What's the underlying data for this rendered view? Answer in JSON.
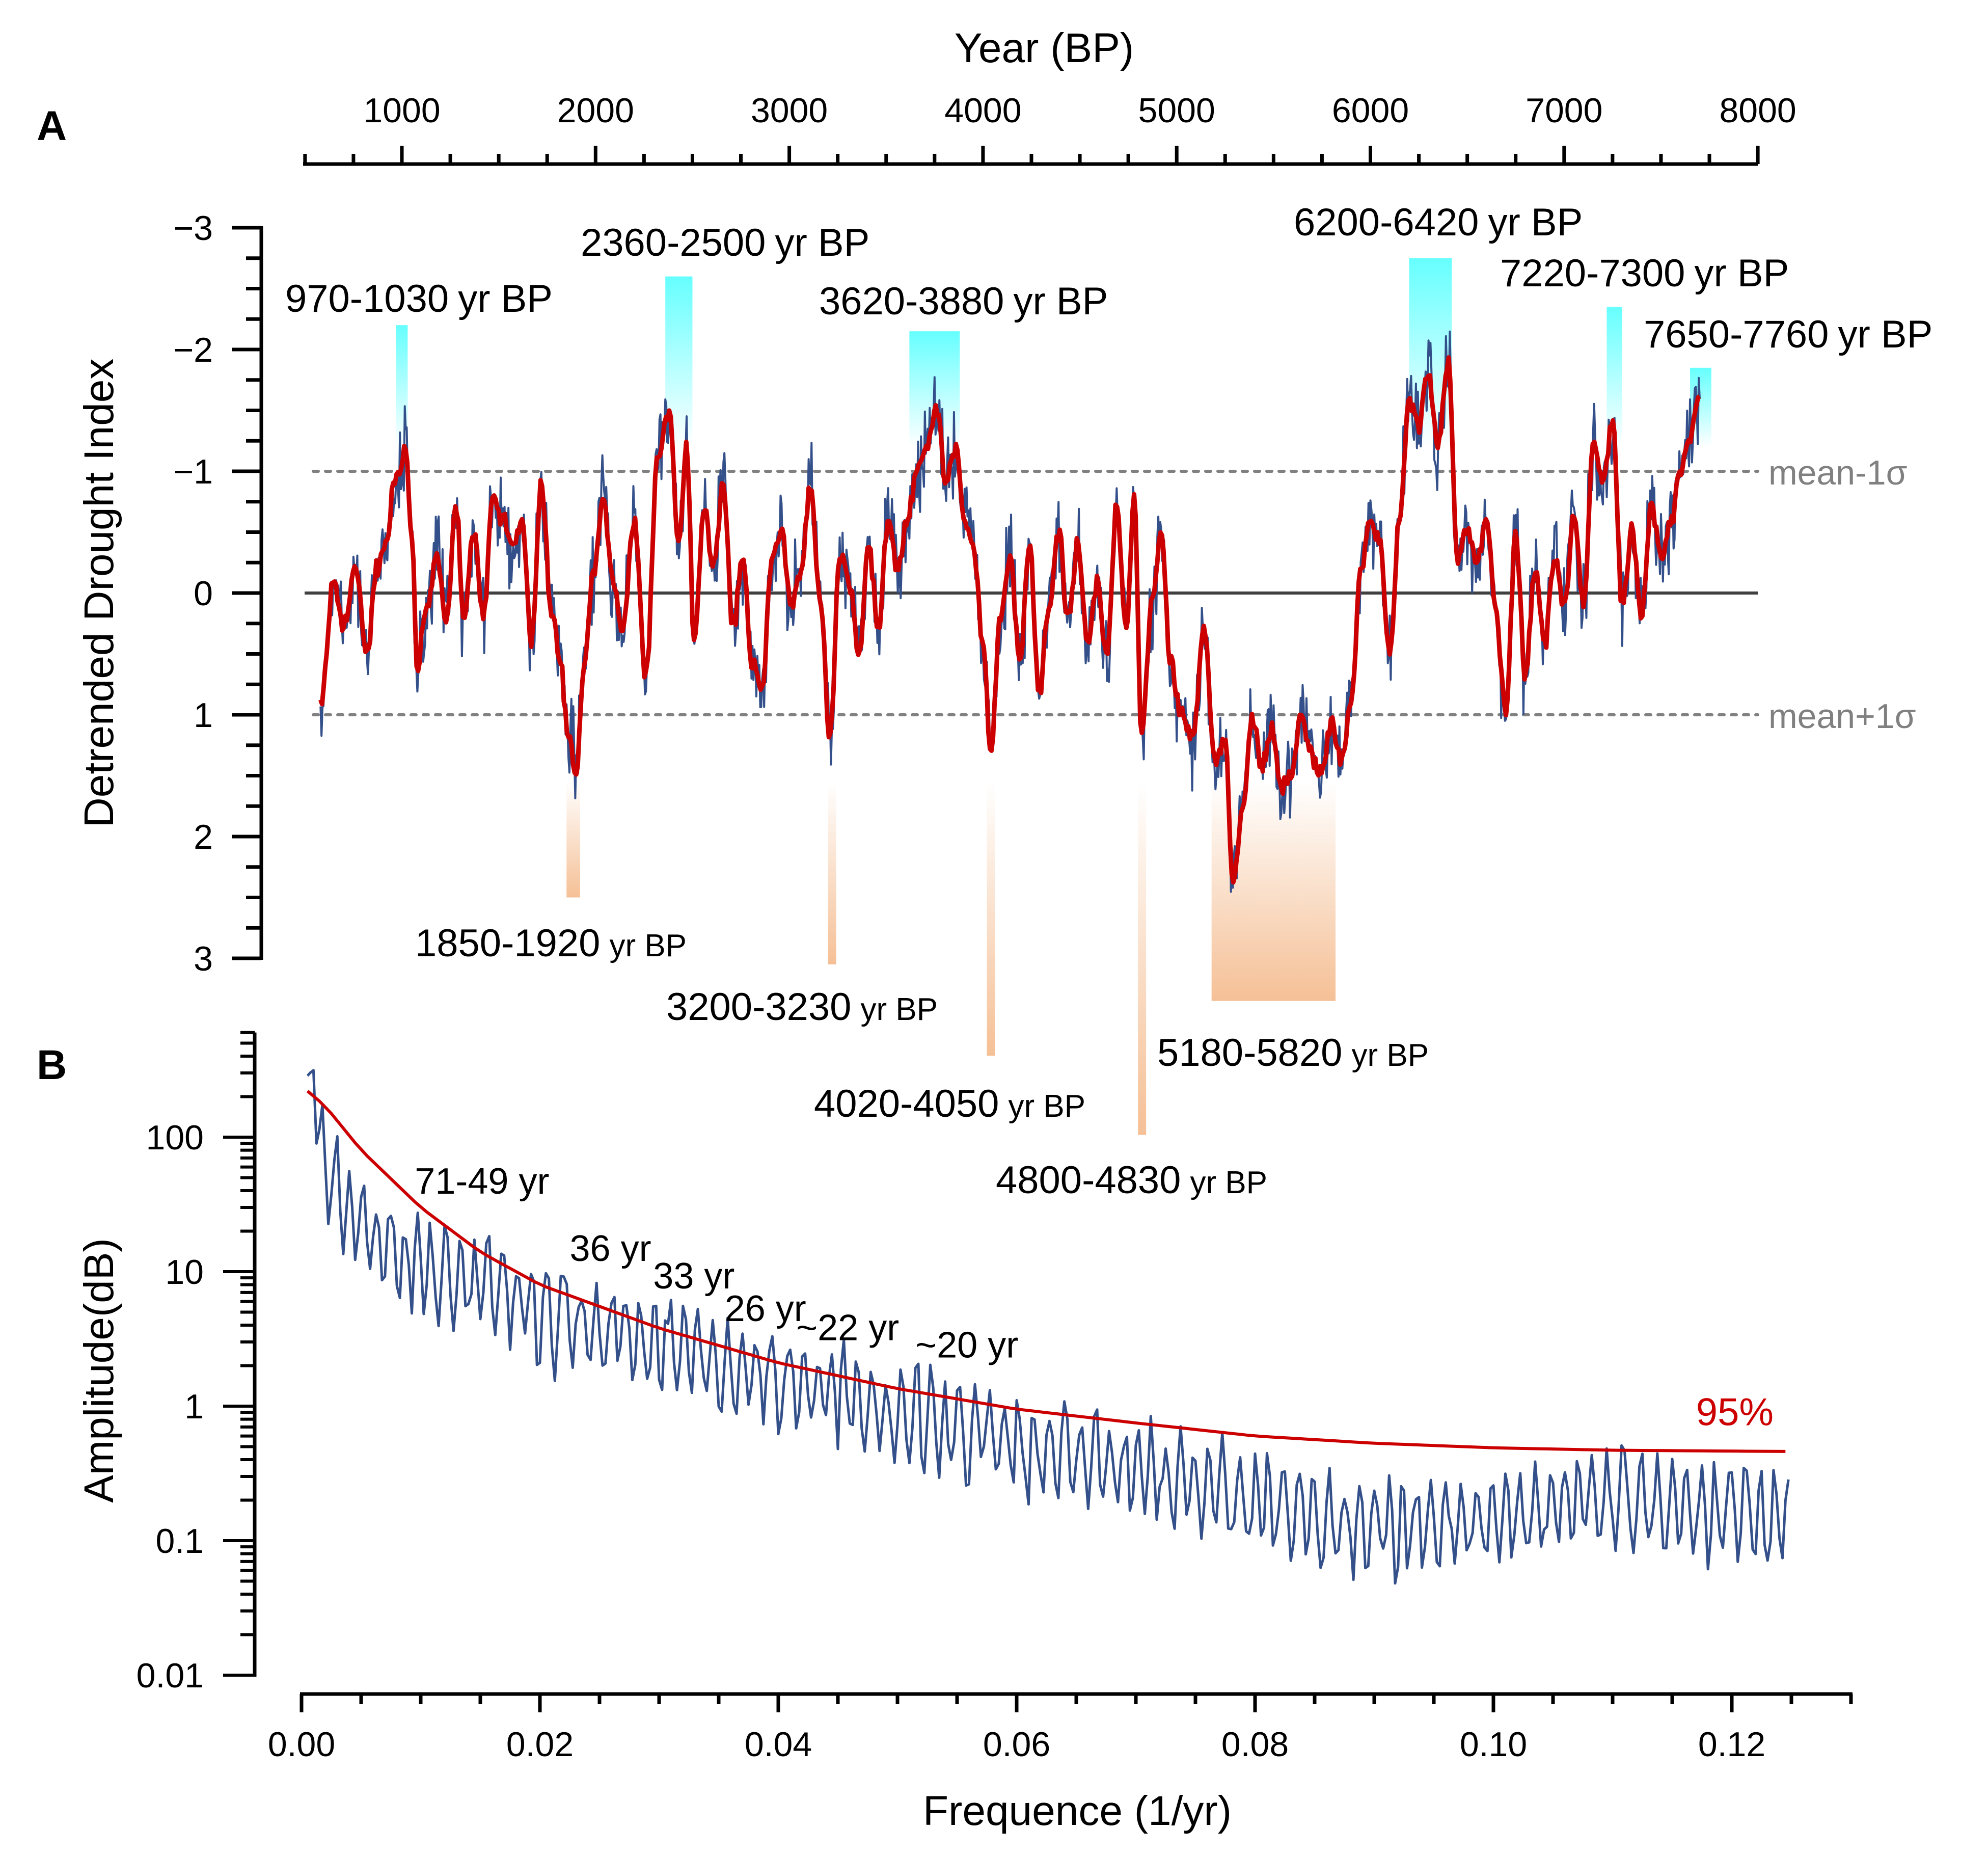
{
  "figure": {
    "panel_a_label": "A",
    "panel_b_label": "B"
  },
  "chart_data": [
    {
      "panel": "A",
      "type": "line",
      "title": "",
      "xlabel": "Year (BP)",
      "ylabel": "Detrended Drought Index",
      "x_axis_position": "top",
      "xlim": [
        490,
        8000
      ],
      "ylim": [
        -3,
        3
      ],
      "y_inverted": true,
      "xticks": [
        1000,
        2000,
        3000,
        4000,
        5000,
        6000,
        7000,
        8000
      ],
      "xtick_labels": [
        "1000",
        "2000",
        "3000",
        "4000",
        "5000",
        "6000",
        "7000",
        "8000"
      ],
      "yticks": [
        -3,
        -2,
        -1,
        0,
        1,
        2,
        3
      ],
      "ytick_labels": [
        "−3",
        "−2",
        "−1",
        "0",
        "1",
        "2",
        "3"
      ],
      "grid": false,
      "data_range_years": [
        580,
        7780
      ],
      "series": [
        {
          "name": "Detrended drought index (raw)",
          "color": "#34508a",
          "style": "thin"
        },
        {
          "name": "Smoothed drought index",
          "color": "#cc0000",
          "style": "thick"
        }
      ],
      "smoothed_anchor_points": {
        "year": [
          580,
          650,
          700,
          760,
          820,
          870,
          920,
          960,
          990,
          1020,
          1050,
          1080,
          1130,
          1180,
          1230,
          1280,
          1320,
          1370,
          1420,
          1470,
          1520,
          1570,
          1620,
          1670,
          1720,
          1770,
          1820,
          1860,
          1900,
          1940,
          1990,
          2040,
          2090,
          2140,
          2200,
          2260,
          2320,
          2380,
          2430,
          2470,
          2510,
          2560,
          2610,
          2660,
          2710,
          2760,
          2810,
          2860,
          2910,
          2960,
          3010,
          3060,
          3110,
          3160,
          3210,
          3260,
          3310,
          3360,
          3410,
          3460,
          3510,
          3560,
          3610,
          3660,
          3710,
          3760,
          3810,
          3860,
          3900,
          3950,
          4000,
          4040,
          4090,
          4140,
          4190,
          4240,
          4290,
          4340,
          4390,
          4440,
          4490,
          4540,
          4590,
          4640,
          4690,
          4740,
          4780,
          4820,
          4870,
          4920,
          4970,
          5020,
          5080,
          5140,
          5200,
          5250,
          5290,
          5340,
          5390,
          5440,
          5490,
          5540,
          5590,
          5640,
          5690,
          5740,
          5800,
          5850,
          5900,
          5950,
          6000,
          6050,
          6100,
          6150,
          6200,
          6250,
          6300,
          6350,
          6400,
          6450,
          6500,
          6550,
          6600,
          6650,
          6700,
          6750,
          6800,
          6850,
          6900,
          6950,
          7000,
          7050,
          7100,
          7150,
          7200,
          7250,
          7300,
          7350,
          7400,
          7450,
          7500,
          7550,
          7600,
          7650,
          7700,
          7740,
          7780
        ],
        "value": [
          0.9,
          -0.1,
          0.3,
          -0.2,
          0.5,
          -0.2,
          -0.4,
          -0.9,
          -1.0,
          -1.2,
          -0.5,
          0.6,
          0.1,
          -0.3,
          0.2,
          -0.7,
          0.2,
          -0.5,
          0.2,
          -0.8,
          -0.6,
          -0.4,
          -0.6,
          0.4,
          -0.9,
          0.1,
          0.6,
          1.2,
          1.5,
          0.6,
          -0.2,
          -0.8,
          -0.1,
          0.3,
          -0.6,
          0.7,
          -1.1,
          -1.5,
          -0.4,
          -1.2,
          0.4,
          -0.7,
          -0.2,
          -0.9,
          0.3,
          -0.3,
          0.6,
          0.8,
          -0.3,
          -0.5,
          0.1,
          -0.2,
          -0.9,
          0.1,
          1.2,
          -0.3,
          -0.1,
          0.5,
          -0.4,
          0.3,
          -0.6,
          -0.2,
          -0.6,
          -1.0,
          -1.2,
          -1.5,
          -0.9,
          -1.2,
          -0.6,
          -0.4,
          0.4,
          1.3,
          0.2,
          -0.3,
          0.6,
          -0.4,
          0.8,
          0.1,
          -0.5,
          0.2,
          -0.4,
          0.4,
          -0.1,
          0.5,
          -0.7,
          0.3,
          -0.8,
          1.2,
          0.1,
          -0.5,
          0.6,
          1.0,
          1.2,
          0.3,
          1.4,
          1.2,
          2.4,
          1.8,
          1.0,
          1.4,
          1.1,
          1.6,
          1.5,
          1.0,
          1.3,
          1.5,
          1.1,
          1.4,
          0.9,
          -0.2,
          -0.6,
          -0.4,
          0.5,
          -0.6,
          -1.6,
          -1.4,
          -1.8,
          -1.2,
          -1.9,
          -0.3,
          -0.5,
          -0.2,
          -0.6,
          0.2,
          1.0,
          -0.5,
          0.7,
          -0.2,
          0.4,
          -0.3,
          0.1,
          -0.6,
          0.1,
          -1.2,
          -0.9,
          -1.4,
          0.1,
          -0.5,
          0.2,
          -0.7,
          -0.3,
          -0.6,
          -1.0,
          -1.3,
          -1.6
        ]
      },
      "reference_lines": [
        {
          "value": 0,
          "style": "solid",
          "color": "#404040"
        },
        {
          "value": -1,
          "style": "dotted",
          "label": "mean-1σ",
          "color": "#808080"
        },
        {
          "value": 1,
          "style": "dotted",
          "label": "mean+1σ",
          "color": "#808080"
        }
      ],
      "dry_periods": [
        {
          "start": 970,
          "end": 1030,
          "label": "970-1030",
          "unit": "yr BP",
          "bar_extent": -2.2
        },
        {
          "start": 2360,
          "end": 2500,
          "label": "2360-2500",
          "unit": "yr BP",
          "bar_extent": -2.6
        },
        {
          "start": 3620,
          "end": 3880,
          "label": "3620-3880",
          "unit": "yr BP",
          "bar_extent": -2.15
        },
        {
          "start": 6200,
          "end": 6420,
          "label": "6200-6420",
          "unit": "yr BP",
          "bar_extent": -2.75
        },
        {
          "start": 7220,
          "end": 7300,
          "label": "7220-7300",
          "unit": "yr BP",
          "bar_extent": -2.35
        },
        {
          "start": 7650,
          "end": 7760,
          "label": "7650-7760",
          "unit": "yr BP",
          "bar_extent": -1.85
        }
      ],
      "wet_periods": [
        {
          "start": 1850,
          "end": 1920,
          "label": "1850-1920",
          "unit": "yr BP",
          "bar_extent": 2.5
        },
        {
          "start": 3200,
          "end": 3230,
          "label": "3200-3230",
          "unit": "yr BP",
          "bar_extent": 3.05
        },
        {
          "start": 4020,
          "end": 4050,
          "label": "4020-4050",
          "unit": "yr BP",
          "bar_extent": 3.8
        },
        {
          "start": 4800,
          "end": 4830,
          "label": "4800-4830",
          "unit": "yr BP",
          "bar_extent": 4.45
        },
        {
          "start": 5180,
          "end": 5820,
          "label": "5180-5820",
          "unit": "yr BP",
          "bar_extent": 3.35
        }
      ],
      "colors": {
        "dry_band": "#66ffff",
        "wet_band": "#f5c096",
        "raw": "#34508a",
        "smoothed": "#cc0000"
      }
    },
    {
      "panel": "B",
      "type": "line",
      "title": "",
      "xlabel": "Frequence (1/yr)",
      "ylabel": "Amplitude(dB)",
      "xlim": [
        0,
        0.13
      ],
      "ylim": [
        0.01,
        600
      ],
      "yscale": "log",
      "xticks": [
        0.0,
        0.02,
        0.04,
        0.06,
        0.08,
        0.1,
        0.12
      ],
      "xtick_labels": [
        "0.00",
        "0.02",
        "0.04",
        "0.06",
        "0.08",
        "0.10",
        "0.12"
      ],
      "yticks": [
        0.01,
        0.1,
        1,
        10,
        100
      ],
      "ytick_labels": [
        "0.01",
        "0.1",
        "1",
        "10",
        "100"
      ],
      "grid": false,
      "series": [
        {
          "name": "Spectrum amplitude",
          "color": "#34508a",
          "trend_points": {
            "freq": [
              0.0005,
              0.001,
              0.002,
              0.004,
              0.008,
              0.014,
              0.02,
              0.03,
              0.04,
              0.05,
              0.06,
              0.07,
              0.08,
              0.09,
              0.1,
              0.11,
              0.125
            ],
            "amplitude": [
              250,
              300,
              60,
              30,
              12,
              9,
              5,
              3,
              1.5,
              0.9,
              0.5,
              0.35,
              0.2,
              0.12,
              0.15,
              0.2,
              0.15
            ]
          }
        },
        {
          "name": "95% confidence",
          "color": "#cc0000",
          "freq": [
            0.0005,
            0.002,
            0.005,
            0.01,
            0.015,
            0.02,
            0.03,
            0.04,
            0.05,
            0.06,
            0.07,
            0.08,
            0.09,
            0.1,
            0.11,
            0.125
          ],
          "amplitude": [
            220,
            170,
            80,
            30,
            14,
            8,
            3.8,
            2.1,
            1.35,
            0.95,
            0.75,
            0.6,
            0.53,
            0.49,
            0.47,
            0.46
          ]
        }
      ],
      "annotations": [
        {
          "text": "71-49 yr",
          "freq": 0.0095,
          "amplitude": 38
        },
        {
          "text": "36 yr",
          "freq": 0.0225,
          "amplitude": 12
        },
        {
          "text": "33 yr",
          "freq": 0.0295,
          "amplitude": 7.5
        },
        {
          "text": "26 yr",
          "freq": 0.0355,
          "amplitude": 4.3
        },
        {
          "text": "~22 yr",
          "freq": 0.0415,
          "amplitude": 3.1
        },
        {
          "text": "~20 yr",
          "freq": 0.0515,
          "amplitude": 2.3
        },
        {
          "text": "95%",
          "freq": 0.117,
          "amplitude": 0.72,
          "color": "#cc0000"
        }
      ]
    }
  ]
}
